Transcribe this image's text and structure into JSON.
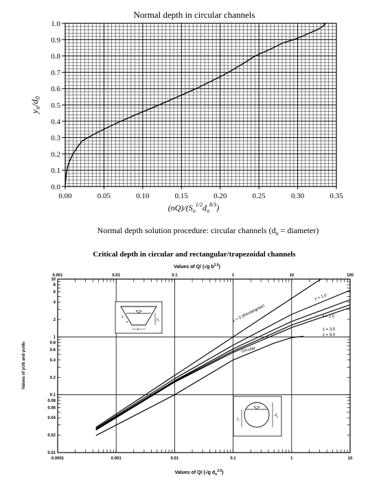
{
  "chart_data": [
    {
      "type": "line",
      "title": "Normal depth in circular channels",
      "xlabel_parts": {
        "a": "(nQ)/(S",
        "s1": "o",
        "b": "1/2",
        "c": "d",
        "s2": "o",
        "d": "8/3",
        "e": ")"
      },
      "ylabel_parts": {
        "a": "y",
        "s1": "n",
        "b": "/d",
        "s2": "0"
      },
      "caption_parts": {
        "a": "Normal depth solution procedure: circular channels (d",
        "s": "o",
        "b": " = diameter)"
      },
      "x_ticks": [
        "0.00",
        "0.05",
        "0.10",
        "0.15",
        "0.20",
        "0.25",
        "0.30",
        "0.35"
      ],
      "y_ticks": [
        "0.0",
        "0.1",
        "0.2",
        "0.3",
        "0.4",
        "0.5",
        "0.6",
        "0.7",
        "0.8",
        "0.9",
        "1.0"
      ],
      "xlim": [
        0,
        0.35
      ],
      "ylim": [
        0,
        1.0
      ],
      "grid": true,
      "series": [
        {
          "x": [
            0.0,
            0.0005,
            0.0015,
            0.003,
            0.006,
            0.01,
            0.0155,
            0.022,
            0.037,
            0.054,
            0.072,
            0.091,
            0.111,
            0.131,
            0.15,
            0.169,
            0.186,
            0.203,
            0.218,
            0.232,
            0.245,
            0.264,
            0.281,
            0.295,
            0.306,
            0.315,
            0.325,
            0.332,
            0.3355,
            0.3357,
            0.333
          ],
          "y": [
            0.0,
            0.04,
            0.08,
            0.12,
            0.16,
            0.2,
            0.24,
            0.28,
            0.32,
            0.36,
            0.4,
            0.44,
            0.48,
            0.52,
            0.56,
            0.6,
            0.64,
            0.68,
            0.72,
            0.76,
            0.8,
            0.84,
            0.88,
            0.9,
            0.92,
            0.94,
            0.96,
            0.98,
            0.995,
            1.0,
            1.0
          ]
        }
      ]
    },
    {
      "type": "line",
      "log_scale": {
        "x": true,
        "y": true
      },
      "title": "Critical depth in circular and rectangular/trapezoidal channels",
      "top_axis_label_parts": {
        "a": "Values of Q/ (",
        "b": "√g",
        "c": " b",
        "d": "2.5",
        "e": ")"
      },
      "bottom_axis_label_parts": {
        "a": "Values of Q/ (",
        "b": "√g",
        "c": " d",
        "s": "o",
        "d": "2.5",
        "e": ")"
      },
      "ylabel": "Values of yc/b and yc/do",
      "top_ticks": [
        "0.001",
        "0.01",
        "0.1",
        "1",
        "10",
        "100"
      ],
      "bottom_ticks": [
        "0.0001",
        "0.001",
        "0.01",
        "0.1",
        "1",
        "10"
      ],
      "left_ticks": [
        "10",
        "8",
        "6",
        "4",
        "2",
        "1",
        "0.8",
        "0.6",
        "0.4",
        "0.2",
        "0.1",
        "0.08",
        "0.06",
        "0.04",
        "0.02",
        "0.01"
      ],
      "xlim_top": [
        0.001,
        100
      ],
      "xlim_bottom": [
        0.0001,
        10
      ],
      "ylim": [
        0.01,
        10
      ],
      "grid": "major decades",
      "annotations": [
        "z = 0 (Rectangular)",
        "z = 1.0",
        "z = 2.0",
        "z = 3.0",
        "z = 4.0",
        "Circular",
        "b",
        "z",
        "1",
        "y",
        "c",
        "d",
        "o"
      ],
      "series": [
        {
          "name": "z = 0 (Rectangular)",
          "axis": "top",
          "x": [
            0.0045,
            31.6
          ],
          "y": [
            0.0273,
            10.0
          ]
        },
        {
          "name": "z = 1.0",
          "axis": "top",
          "x": [
            0.0045,
            0.1,
            1.0,
            10.0,
            100.0
          ],
          "y": [
            0.0262,
            0.19,
            0.72,
            2.45,
            6.4
          ]
        },
        {
          "name": "z = 2.0",
          "axis": "top",
          "x": [
            0.0045,
            0.1,
            1.0,
            10.0,
            100.0
          ],
          "y": [
            0.0255,
            0.175,
            0.62,
            1.85,
            4.4
          ]
        },
        {
          "name": "z = 3.0",
          "axis": "top",
          "x": [
            0.0045,
            0.1,
            1.0,
            10.0,
            100.0
          ],
          "y": [
            0.025,
            0.17,
            0.57,
            1.6,
            3.6
          ]
        },
        {
          "name": "z = 4.0",
          "axis": "top",
          "x": [
            0.0045,
            0.1,
            1.0,
            10.0,
            100.0
          ],
          "y": [
            0.0245,
            0.165,
            0.54,
            1.45,
            3.2
          ]
        },
        {
          "name": "Circular",
          "axis": "bottom",
          "x": [
            0.00045,
            0.01,
            0.1,
            0.5,
            1.0,
            1.6
          ],
          "y": [
            0.0197,
            0.1,
            0.4,
            0.78,
            0.97,
            1.03
          ]
        }
      ]
    }
  ]
}
